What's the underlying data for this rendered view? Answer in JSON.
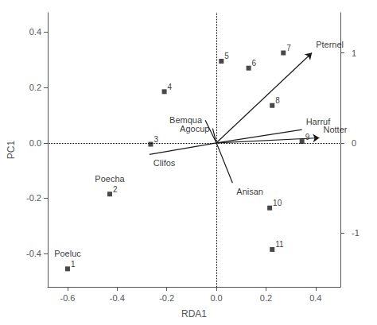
{
  "chart_data": {
    "type": "scatter",
    "xlabel": "RDA1",
    "ylabel": "PC1",
    "x": [
      -0.6,
      -0.43,
      -0.265,
      -0.21,
      0.02,
      0.13,
      0.27,
      0.225,
      0.345,
      0.215,
      0.225
    ],
    "values": [
      -0.455,
      -0.185,
      -0.005,
      0.185,
      0.295,
      0.27,
      0.325,
      0.135,
      0.005,
      -0.235,
      -0.385
    ],
    "point_labels": [
      "1",
      "2",
      "3",
      "4",
      "5",
      "6",
      "7",
      "8",
      "9",
      "10",
      "11"
    ],
    "color": "#1a1a1a",
    "marker": "square",
    "annotations": [
      {
        "text": "Poecha",
        "point": "2"
      },
      {
        "text": "Poeluc",
        "point": "1"
      }
    ],
    "arrows": [
      {
        "label": "Pternel",
        "x": 0.385,
        "y": 0.325,
        "has_head": true
      },
      {
        "label": "Harruf",
        "x": 0.345,
        "y": 0.048,
        "has_head": false
      },
      {
        "label": "Notter",
        "x": 0.415,
        "y": 0.018,
        "has_head": true
      },
      {
        "label": "Bemqua",
        "x": -0.045,
        "y": 0.082,
        "has_head": false
      },
      {
        "label": "Agocup",
        "x": -0.015,
        "y": 0.052,
        "has_head": false
      },
      {
        "label": "Clifos",
        "x": -0.27,
        "y": -0.042,
        "has_head": false
      },
      {
        "label": "Anisan",
        "x": 0.065,
        "y": -0.145,
        "has_head": false
      }
    ],
    "xlim": [
      -0.68,
      0.5
    ],
    "xticks": [
      -0.6,
      -0.4,
      -0.2,
      {
        "value": 0.0,
        "label": "0.0"
      },
      0.2,
      0.4
    ],
    "ylim": [
      -0.52,
      0.47
    ],
    "yticks": [
      -0.4,
      -0.2,
      {
        "value": 0.0,
        "label": "0.0"
      },
      0.2,
      0.4
    ],
    "y2lim": [
      -1.6,
      1.4461538461538461
    ],
    "y2ticks": [
      1,
      0,
      -1
    ],
    "grid": false
  }
}
